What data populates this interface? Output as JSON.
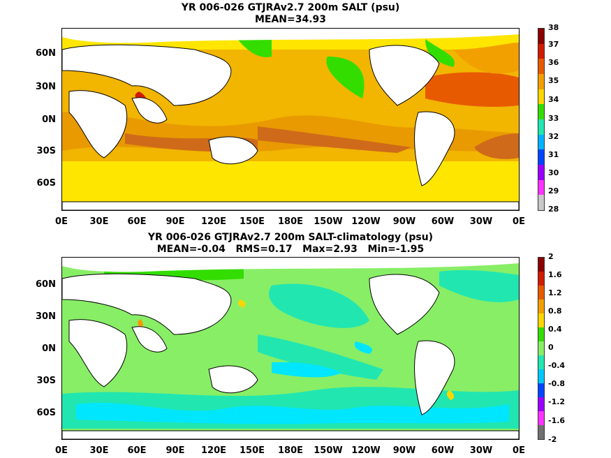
{
  "panels": [
    {
      "title_line1": "YR 006-026 GTJRAv2.7 200m SALT (psu)",
      "title_line2": "MEAN=34.93",
      "lat_labels": [
        "60N",
        "30N",
        "0N",
        "30S",
        "60S"
      ],
      "lon_labels": [
        "0E",
        "30E",
        "60E",
        "90E",
        "120E",
        "150E",
        "180E",
        "150W",
        "120W",
        "90W",
        "60W",
        "30W",
        "0E"
      ],
      "colorbar_labels": [
        "38",
        "37",
        "36",
        "35",
        "34",
        "33",
        "32",
        "31",
        "30",
        "29",
        "28"
      ],
      "colorbar_colors": [
        "#8b0000",
        "#d11c00",
        "#e85a00",
        "#f2a000",
        "#ffd700",
        "#33dd00",
        "#22e6b0",
        "#00b4ff",
        "#0046ff",
        "#9b00ff",
        "#ff33ff",
        "#c8c8c8"
      ]
    },
    {
      "title_line1": "YR 006-026 GTJRAv2.7 200m SALT-climatology (psu)",
      "title_line2": "MEAN=-0.04   RMS=0.17   Max=2.93   Min=-1.95",
      "lat_labels": [
        "60N",
        "30N",
        "0N",
        "30S",
        "60S"
      ],
      "lon_labels": [
        "0E",
        "30E",
        "60E",
        "90E",
        "120E",
        "150E",
        "180E",
        "150W",
        "120W",
        "90W",
        "60W",
        "30W",
        "0E"
      ],
      "colorbar_labels": [
        "2",
        "1.6",
        "1.2",
        "0.8",
        "0.4",
        "0",
        "-0.4",
        "-0.8",
        "-1.2",
        "-1.6",
        "-2"
      ],
      "colorbar_colors": [
        "#8b0000",
        "#d11c00",
        "#e85a00",
        "#f2a000",
        "#ffd700",
        "#33dd00",
        "#88ee66",
        "#22e6b0",
        "#00c8ff",
        "#0046ff",
        "#9b00ff",
        "#ff33ff",
        "#707070"
      ]
    }
  ]
}
